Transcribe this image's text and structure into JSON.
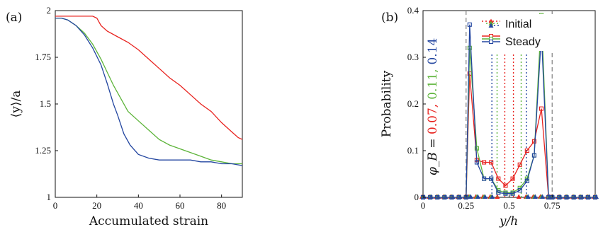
{
  "chart_data": [
    {
      "panel_label": "(a)",
      "type": "line",
      "xlabel": "Accumulated strain",
      "ylabel": "⟨y⟩/a",
      "xlim": [
        0,
        90
      ],
      "ylim": [
        1,
        2
      ],
      "xticks": [
        "0",
        "20",
        "40",
        "60",
        "80"
      ],
      "yticks": [
        "1",
        "1.25",
        "1.5",
        "1.75",
        "2"
      ],
      "series": [
        {
          "color": "#e8231f",
          "x": [
            0,
            5,
            10,
            15,
            18,
            20,
            22,
            25,
            30,
            35,
            40,
            45,
            50,
            55,
            60,
            65,
            70,
            75,
            80,
            85,
            88,
            90
          ],
          "y": [
            1.97,
            1.97,
            1.97,
            1.97,
            1.97,
            1.96,
            1.92,
            1.89,
            1.86,
            1.83,
            1.79,
            1.74,
            1.69,
            1.64,
            1.6,
            1.55,
            1.5,
            1.46,
            1.4,
            1.35,
            1.32,
            1.31
          ]
        },
        {
          "color": "#5db43a",
          "x": [
            0,
            3,
            6,
            10,
            14,
            18,
            22,
            25,
            28,
            30,
            35,
            40,
            45,
            50,
            55,
            60,
            65,
            70,
            75,
            80,
            85,
            90
          ],
          "y": [
            1.96,
            1.96,
            1.95,
            1.92,
            1.88,
            1.82,
            1.74,
            1.67,
            1.6,
            1.56,
            1.46,
            1.41,
            1.36,
            1.31,
            1.28,
            1.26,
            1.24,
            1.22,
            1.2,
            1.19,
            1.18,
            1.18
          ]
        },
        {
          "color": "#2346a0",
          "x": [
            0,
            3,
            6,
            10,
            14,
            18,
            22,
            25,
            28,
            30,
            33,
            36,
            40,
            45,
            50,
            55,
            60,
            65,
            70,
            75,
            80,
            85,
            90
          ],
          "y": [
            1.96,
            1.96,
            1.95,
            1.92,
            1.87,
            1.8,
            1.71,
            1.61,
            1.5,
            1.44,
            1.34,
            1.28,
            1.23,
            1.21,
            1.2,
            1.2,
            1.2,
            1.2,
            1.19,
            1.19,
            1.18,
            1.18,
            1.17
          ]
        }
      ]
    },
    {
      "panel_label": "(b)",
      "type": "line",
      "xlabel": "y/h",
      "ylabel": "Probability",
      "xlim": [
        0,
        1
      ],
      "ylim": [
        0,
        0.4
      ],
      "xticks": [
        "0",
        "0.25",
        "0.5",
        "0.75"
      ],
      "yticks": [
        "0",
        "0.1",
        "0.2",
        "0.3",
        "0.4"
      ],
      "legend": {
        "position": "top-right",
        "entries": [
          "Initial",
          "Steady"
        ]
      },
      "phi_annotation": {
        "prefix": "φ_B = ",
        "values": [
          "0.07,",
          "0.11,",
          "0.14"
        ],
        "colors": [
          "#e8231f",
          "#5db43a",
          "#2346a0"
        ]
      },
      "dashed_verticals": [
        0.25,
        0.75
      ],
      "initial_series": [
        {
          "color": "#e8231f",
          "x": [
            0.475,
            0.525
          ]
        },
        {
          "color": "#5db43a",
          "x": [
            0.43,
            0.57
          ]
        },
        {
          "color": "#2346a0",
          "x": [
            0.4,
            0.6
          ]
        }
      ],
      "initial_peak": 0.31,
      "steady_x": [
        0,
        0.0417,
        0.0833,
        0.125,
        0.1667,
        0.2083,
        0.25,
        0.2708,
        0.3125,
        0.3542,
        0.3958,
        0.4375,
        0.4792,
        0.5208,
        0.5625,
        0.6042,
        0.6458,
        0.6875,
        0.7292,
        0.75,
        0.7917,
        0.8333,
        0.875,
        0.9167,
        0.9583,
        1.0
      ],
      "steady_series": [
        {
          "color": "#e8231f",
          "values": [
            0,
            0,
            0,
            0,
            0,
            0,
            0,
            0.265,
            0.08,
            0.075,
            0.075,
            0.04,
            0.025,
            0.04,
            0.07,
            0.1,
            0.12,
            0.19,
            0,
            0,
            0,
            0,
            0,
            0,
            0,
            0
          ]
        },
        {
          "color": "#5db43a",
          "values": [
            0,
            0,
            0,
            0,
            0,
            0,
            0,
            0.32,
            0.105,
            0.04,
            0.04,
            0.015,
            0.01,
            0.01,
            0.02,
            0.04,
            0.09,
            0.39,
            0,
            0,
            0,
            0,
            0,
            0,
            0,
            0
          ]
        },
        {
          "color": "#2346a0",
          "values": [
            0,
            0,
            0,
            0,
            0,
            0,
            0,
            0.37,
            0.075,
            0.04,
            0.04,
            0.01,
            0.008,
            0.008,
            0.015,
            0.035,
            0.09,
            0.35,
            0,
            0,
            0,
            0,
            0,
            0,
            0,
            0
          ]
        }
      ]
    }
  ]
}
